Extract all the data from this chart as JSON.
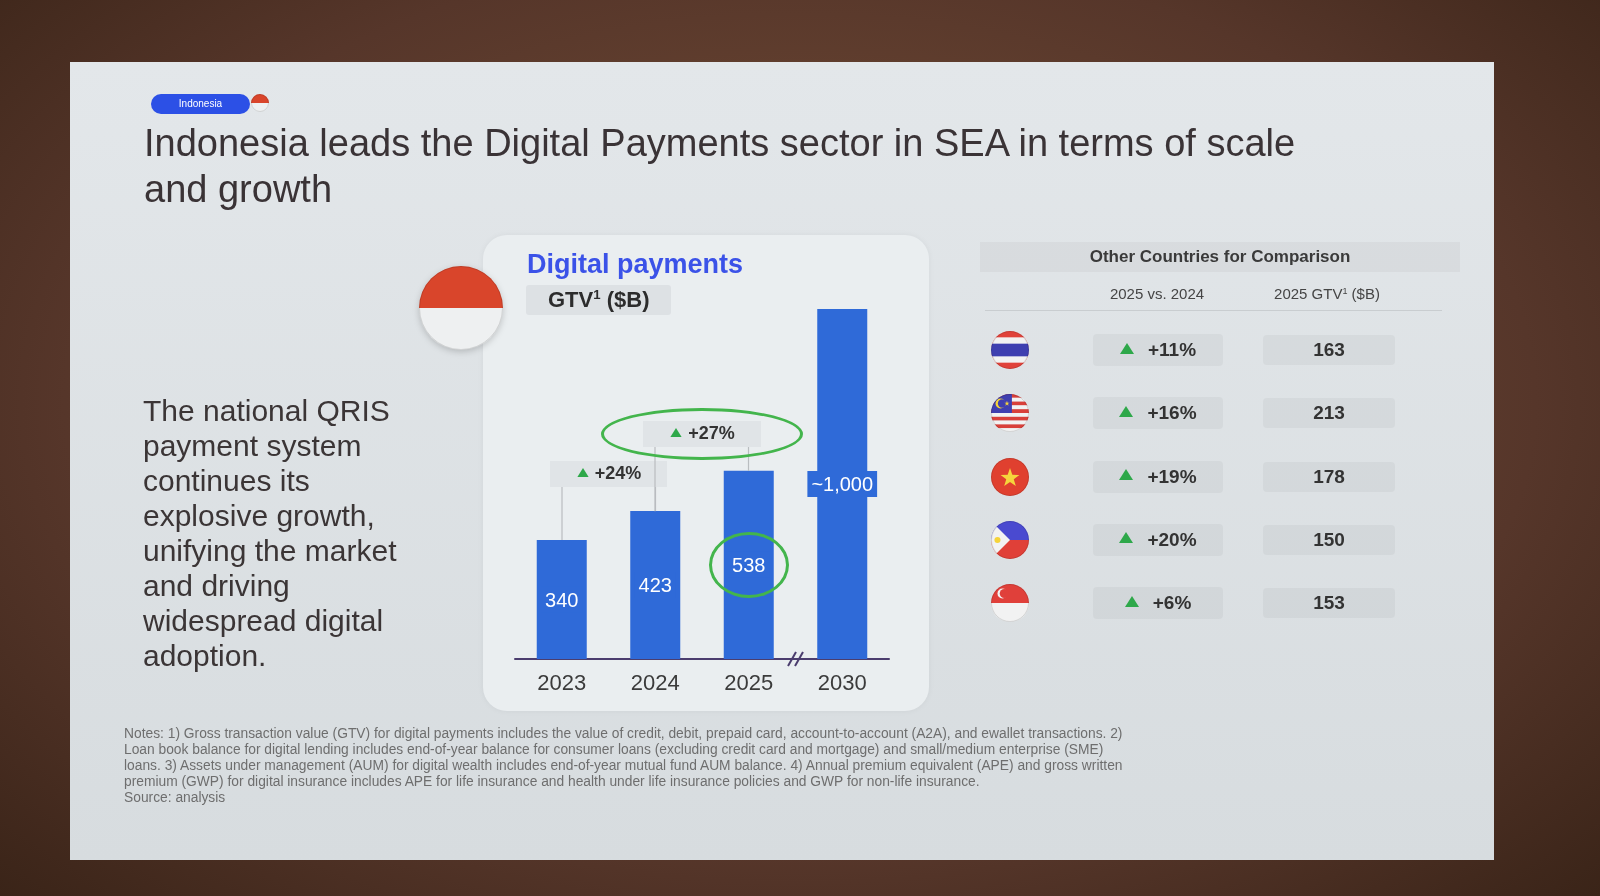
{
  "chart_data": [
    {
      "type": "other",
      "title": "Indonesia leads the Digital Payments sector in SEA in terms of scale and growth",
      "annotations": [
        "Indonesia",
        "The national QRIS payment system continues its explosive growth, unifying the market and driving widespread digital adoption.",
        "Notes: 1) Gross transaction value (GTV) for digital payments includes the value of credit, debit, prepaid card, account-to-account (A2A), and ewallet transactions. 2) Loan book balance for digital lending includes end-of-year balance for consumer loans (excluding credit card and mortgage) and small/medium enterprise (SME) loans. 3) Assets under management (AUM) for digital wealth includes end-of-year mutual fund AUM balance. 4) Annual premium equivalent (APE) and gross written premium (GWP) for digital insurance includes APE for life insurance and health under life insurance policies and GWP for non-life insurance.",
        "Source: analysis"
      ]
    },
    {
      "type": "bar",
      "title": "Digital payments",
      "subtitle": "GTV$^{1}$ ($B)",
      "categories": [
        "2023",
        "2024",
        "2025",
        "2030"
      ],
      "values": [
        340,
        423,
        538,
        1000
      ],
      "value_labels": [
        "340",
        "423",
        "538",
        "~1,000"
      ],
      "color": "#2f6ad8",
      "annotations": [
        "+24%",
        "+27%"
      ]
    },
    {
      "type": "other",
      "title": "Other Countries for Comparison",
      "annotations": [
        "2025 vs. 2024",
        "2025 GTV$^{1}$ ($B)",
        "+11%",
        "163",
        "+16%",
        "213",
        "+19%",
        "178",
        "+20%",
        "150",
        "+6%",
        "153"
      ]
    }
  ]
}
